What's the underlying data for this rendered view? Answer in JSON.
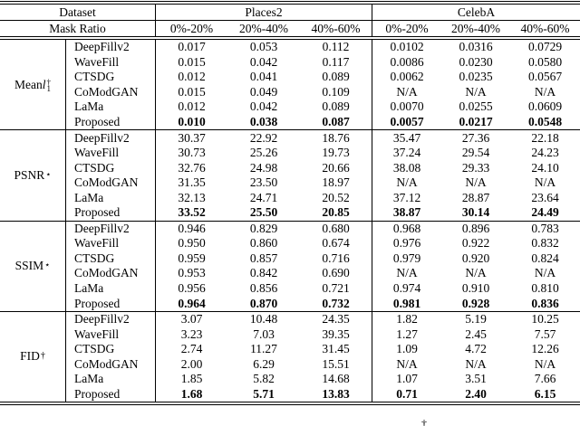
{
  "table": {
    "header": {
      "dataset_label": "Dataset",
      "mask_ratio_label": "Mask Ratio",
      "datasets": [
        "Places2",
        "CelebA"
      ],
      "ratios": [
        "0%-20%",
        "20%-40%",
        "40%-60%"
      ]
    },
    "methods": [
      "DeepFillv2",
      "WaveFill",
      "CTSDG",
      "CoModGAN",
      "LaMa",
      "Proposed"
    ],
    "metrics": [
      {
        "label": {
          "base": "Mean ",
          "var": "l",
          "sub": "1",
          "sup": "†"
        },
        "rows": [
          {
            "method": "DeepFillv2",
            "bold": false,
            "values": [
              "0.017",
              "0.053",
              "0.112",
              "0.0102",
              "0.0316",
              "0.0729"
            ]
          },
          {
            "method": "WaveFill",
            "bold": false,
            "values": [
              "0.015",
              "0.042",
              "0.117",
              "0.0086",
              "0.0230",
              "0.0580"
            ]
          },
          {
            "method": "CTSDG",
            "bold": false,
            "values": [
              "0.012",
              "0.041",
              "0.089",
              "0.0062",
              "0.0235",
              "0.0567"
            ]
          },
          {
            "method": "CoModGAN",
            "bold": false,
            "values": [
              "0.015",
              "0.049",
              "0.109",
              "N/A",
              "N/A",
              "N/A"
            ]
          },
          {
            "method": "LaMa",
            "bold": false,
            "values": [
              "0.012",
              "0.042",
              "0.089",
              "0.0070",
              "0.0255",
              "0.0609"
            ]
          },
          {
            "method": "Proposed",
            "bold": true,
            "values": [
              "0.010",
              "0.038",
              "0.087",
              "0.0057",
              "0.0217",
              "0.0548"
            ]
          }
        ]
      },
      {
        "label": {
          "base": "PSNR",
          "sup": "⋆"
        },
        "rows": [
          {
            "method": "DeepFillv2",
            "bold": false,
            "values": [
              "30.37",
              "22.92",
              "18.76",
              "35.47",
              "27.36",
              "22.18"
            ]
          },
          {
            "method": "WaveFill",
            "bold": false,
            "values": [
              "30.73",
              "25.26",
              "19.73",
              "37.24",
              "29.54",
              "24.23"
            ]
          },
          {
            "method": "CTSDG",
            "bold": false,
            "values": [
              "32.76",
              "24.98",
              "20.66",
              "38.08",
              "29.33",
              "24.10"
            ]
          },
          {
            "method": "CoModGAN",
            "bold": false,
            "values": [
              "31.35",
              "23.50",
              "18.97",
              "N/A",
              "N/A",
              "N/A"
            ]
          },
          {
            "method": "LaMa",
            "bold": false,
            "values": [
              "32.13",
              "24.71",
              "20.52",
              "37.12",
              "28.87",
              "23.64"
            ]
          },
          {
            "method": "Proposed",
            "bold": true,
            "values": [
              "33.52",
              "25.50",
              "20.85",
              "38.87",
              "30.14",
              "24.49"
            ]
          }
        ]
      },
      {
        "label": {
          "base": "SSIM",
          "sup": "⋆"
        },
        "rows": [
          {
            "method": "DeepFillv2",
            "bold": false,
            "values": [
              "0.946",
              "0.829",
              "0.680",
              "0.968",
              "0.896",
              "0.783"
            ]
          },
          {
            "method": "WaveFill",
            "bold": false,
            "values": [
              "0.950",
              "0.860",
              "0.674",
              "0.976",
              "0.922",
              "0.832"
            ]
          },
          {
            "method": "CTSDG",
            "bold": false,
            "values": [
              "0.959",
              "0.857",
              "0.716",
              "0.979",
              "0.920",
              "0.824"
            ]
          },
          {
            "method": "CoModGAN",
            "bold": false,
            "values": [
              "0.953",
              "0.842",
              "0.690",
              "N/A",
              "N/A",
              "N/A"
            ]
          },
          {
            "method": "LaMa",
            "bold": false,
            "values": [
              "0.956",
              "0.856",
              "0.721",
              "0.974",
              "0.910",
              "0.810"
            ]
          },
          {
            "method": "Proposed",
            "bold": true,
            "values": [
              "0.964",
              "0.870",
              "0.732",
              "0.981",
              "0.928",
              "0.836"
            ]
          }
        ]
      },
      {
        "label": {
          "base": "FID",
          "sup": "†"
        },
        "rows": [
          {
            "method": "DeepFillv2",
            "bold": false,
            "values": [
              "3.07",
              "10.48",
              "24.35",
              "1.82",
              "5.19",
              "10.25"
            ]
          },
          {
            "method": "WaveFill",
            "bold": false,
            "values": [
              "3.23",
              "7.03",
              "39.35",
              "1.27",
              "2.45",
              "7.57"
            ]
          },
          {
            "method": "CTSDG",
            "bold": false,
            "values": [
              "2.74",
              "11.27",
              "31.45",
              "1.09",
              "4.72",
              "12.26"
            ]
          },
          {
            "method": "CoModGAN",
            "bold": false,
            "values": [
              "2.00",
              "6.29",
              "15.51",
              "N/A",
              "N/A",
              "N/A"
            ]
          },
          {
            "method": "LaMa",
            "bold": false,
            "values": [
              "1.85",
              "5.82",
              "14.68",
              "1.07",
              "3.51",
              "7.66"
            ]
          },
          {
            "method": "Proposed",
            "bold": true,
            "values": [
              "1.68",
              "5.71",
              "13.83",
              "0.71",
              "2.40",
              "6.15"
            ]
          }
        ]
      }
    ],
    "footnote_fragment": "†",
    "ink_color": "#000000"
  }
}
